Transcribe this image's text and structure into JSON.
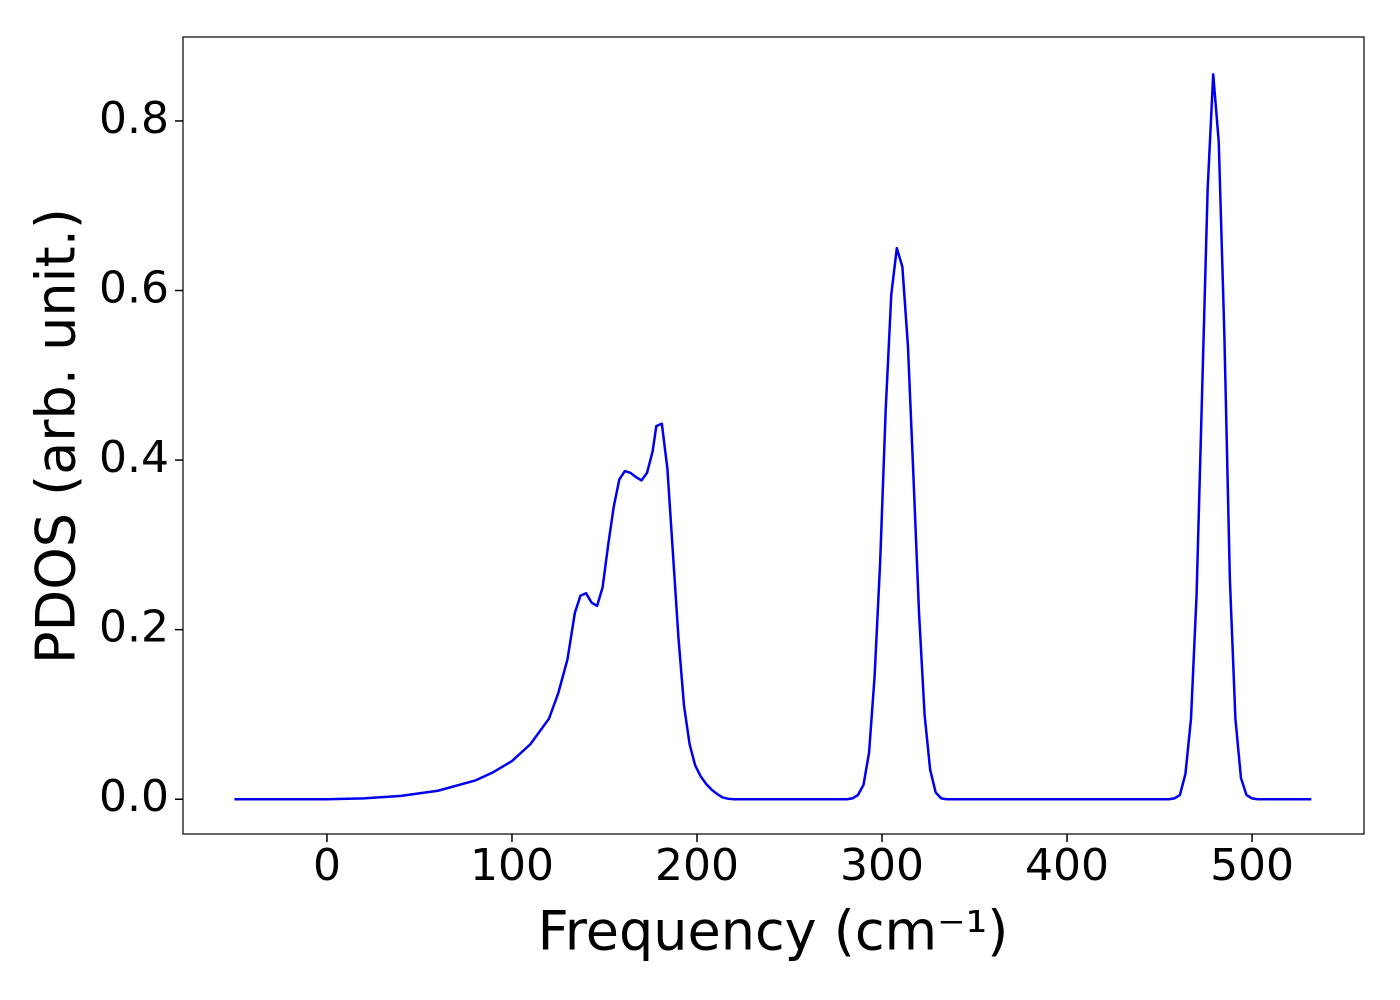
{
  "chart_data": {
    "type": "line",
    "xlabel": "Frequency (cm⁻¹)",
    "ylabel": "PDOS (arb. unit.)",
    "x": [
      -50,
      0,
      20,
      40,
      60,
      80,
      90,
      100,
      110,
      115,
      120,
      125,
      130,
      134,
      137,
      140,
      143,
      146,
      149,
      152,
      155,
      158,
      161,
      164,
      167,
      170,
      173,
      176,
      178,
      181,
      184,
      187,
      190,
      193,
      196,
      199,
      202,
      205,
      208,
      211,
      214,
      217,
      220,
      281,
      284,
      287,
      290,
      293,
      296,
      299,
      302,
      305,
      308,
      311,
      314,
      317,
      320,
      323,
      326,
      329,
      332,
      335,
      455,
      458,
      461,
      464,
      467,
      470,
      473,
      476,
      479,
      482,
      485,
      488,
      491,
      494,
      497,
      500,
      503,
      532
    ],
    "series": [
      {
        "name": "PDOS",
        "color": "#0000ee",
        "values": [
          0,
          0,
          0.001,
          0.004,
          0.01,
          0.022,
          0.032,
          0.045,
          0.065,
          0.08,
          0.095,
          0.125,
          0.165,
          0.22,
          0.24,
          0.243,
          0.232,
          0.228,
          0.25,
          0.3,
          0.345,
          0.377,
          0.387,
          0.385,
          0.38,
          0.376,
          0.385,
          0.41,
          0.44,
          0.443,
          0.39,
          0.29,
          0.19,
          0.11,
          0.065,
          0.04,
          0.027,
          0.018,
          0.011,
          0.006,
          0.002,
          0.0005,
          0,
          0,
          0.001,
          0.005,
          0.017,
          0.055,
          0.145,
          0.28,
          0.46,
          0.595,
          0.65,
          0.628,
          0.535,
          0.38,
          0.22,
          0.1,
          0.035,
          0.008,
          0.001,
          0,
          0,
          0.001,
          0.005,
          0.03,
          0.095,
          0.24,
          0.48,
          0.72,
          0.855,
          0.775,
          0.55,
          0.26,
          0.095,
          0.025,
          0.005,
          0.001,
          0,
          0
        ]
      }
    ],
    "xlim": [
      -77.8,
      560.5
    ],
    "ylim": [
      -0.041,
      0.899
    ],
    "xticks": [
      0,
      100,
      200,
      300,
      400,
      500
    ],
    "yticks": [
      {
        "value": 0,
        "label": "0.0"
      },
      {
        "value": 0.2,
        "label": "0.2"
      },
      {
        "value": 0.4,
        "label": "0.4"
      },
      {
        "value": 0.6,
        "label": "0.6"
      },
      {
        "value": 0.8,
        "label": "0.8"
      }
    ],
    "grid": false
  }
}
